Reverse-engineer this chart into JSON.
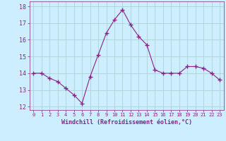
{
  "x": [
    0,
    1,
    2,
    3,
    4,
    5,
    6,
    7,
    8,
    9,
    10,
    11,
    12,
    13,
    14,
    15,
    16,
    17,
    18,
    19,
    20,
    21,
    22,
    23
  ],
  "y": [
    14.0,
    14.0,
    13.7,
    13.5,
    13.1,
    12.7,
    12.2,
    13.8,
    15.1,
    16.4,
    17.2,
    17.8,
    16.9,
    16.2,
    15.7,
    14.2,
    14.0,
    14.0,
    14.0,
    14.4,
    14.4,
    14.3,
    14.0,
    13.6
  ],
  "line_color": "#882288",
  "marker": "+",
  "marker_size": 4,
  "marker_linewidth": 1.0,
  "bg_color": "#cceeff",
  "grid_color": "#aacccc",
  "xlabel": "Windchill (Refroidissement éolien,°C)",
  "xlabel_color": "#882288",
  "tick_color": "#882288",
  "label_color": "#882288",
  "ylim": [
    11.8,
    18.3
  ],
  "xlim": [
    -0.5,
    23.5
  ],
  "yticks": [
    12,
    13,
    14,
    15,
    16,
    17,
    18
  ],
  "xticks": [
    0,
    1,
    2,
    3,
    4,
    5,
    6,
    7,
    8,
    9,
    10,
    11,
    12,
    13,
    14,
    15,
    16,
    17,
    18,
    19,
    20,
    21,
    22,
    23
  ]
}
